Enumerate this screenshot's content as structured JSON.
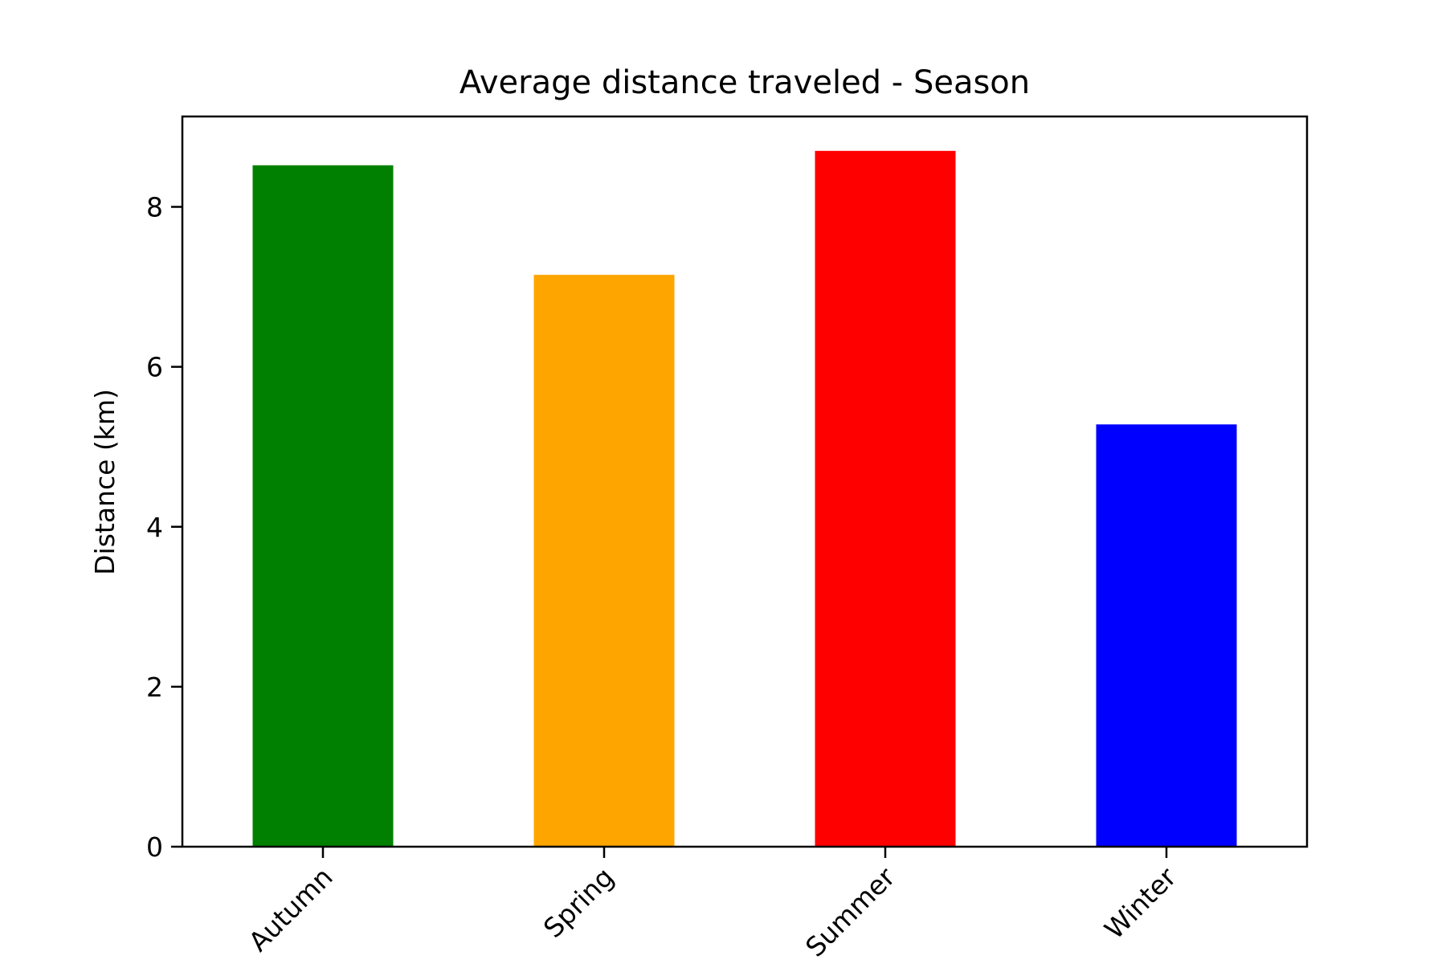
{
  "chart_data": {
    "type": "bar",
    "title": "Average distance traveled - Season",
    "xlabel": "",
    "ylabel": "Distance (km)",
    "categories": [
      "Autumn",
      "Spring",
      "Summer",
      "Winter"
    ],
    "values": [
      8.52,
      7.15,
      8.7,
      5.28
    ],
    "colors": [
      "#008000",
      "#ffa500",
      "#ff0000",
      "#0000ff"
    ],
    "ylim": [
      0,
      9.13
    ],
    "yticks": [
      0,
      2,
      4,
      6,
      8
    ],
    "ytick_labels": [
      "0",
      "2",
      "4",
      "6",
      "8"
    ],
    "xtick_rotation": 45,
    "grid": false,
    "legend": "none"
  }
}
